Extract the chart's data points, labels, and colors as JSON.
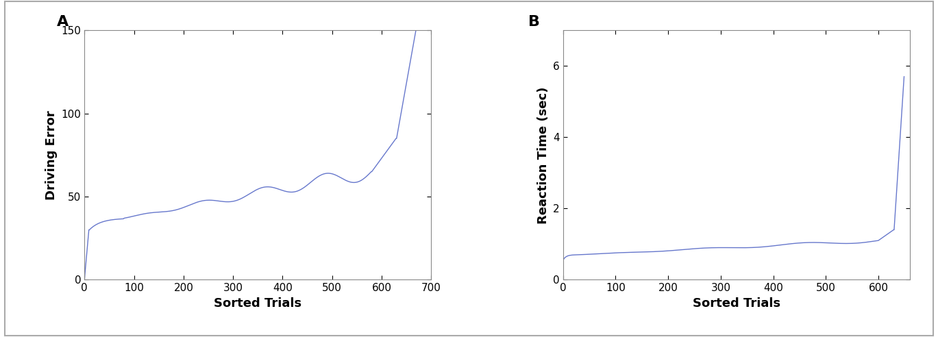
{
  "panel_A": {
    "label": "A",
    "xlabel": "Sorted Trials",
    "ylabel": "Driving Error",
    "xlim": [
      0,
      700
    ],
    "ylim": [
      0,
      150
    ],
    "xticks": [
      0,
      100,
      200,
      300,
      400,
      500,
      600,
      700
    ],
    "yticks": [
      0,
      50,
      100,
      150
    ],
    "n_trials": 670,
    "line_color": "#6677cc"
  },
  "panel_B": {
    "label": "B",
    "xlabel": "Sorted Trials",
    "ylabel": "Reaction Time (sec)",
    "xlim": [
      0,
      660
    ],
    "ylim": [
      0,
      7
    ],
    "xticks": [
      0,
      100,
      200,
      300,
      400,
      500,
      600
    ],
    "yticks": [
      0,
      2,
      4,
      6
    ],
    "n_trials": 650,
    "line_color": "#6677cc"
  },
  "fig_background": "#ffffff",
  "axes_background": "#ffffff",
  "label_fontsize": 13,
  "tick_fontsize": 11,
  "panel_label_fontsize": 16,
  "line_width": 1.0
}
